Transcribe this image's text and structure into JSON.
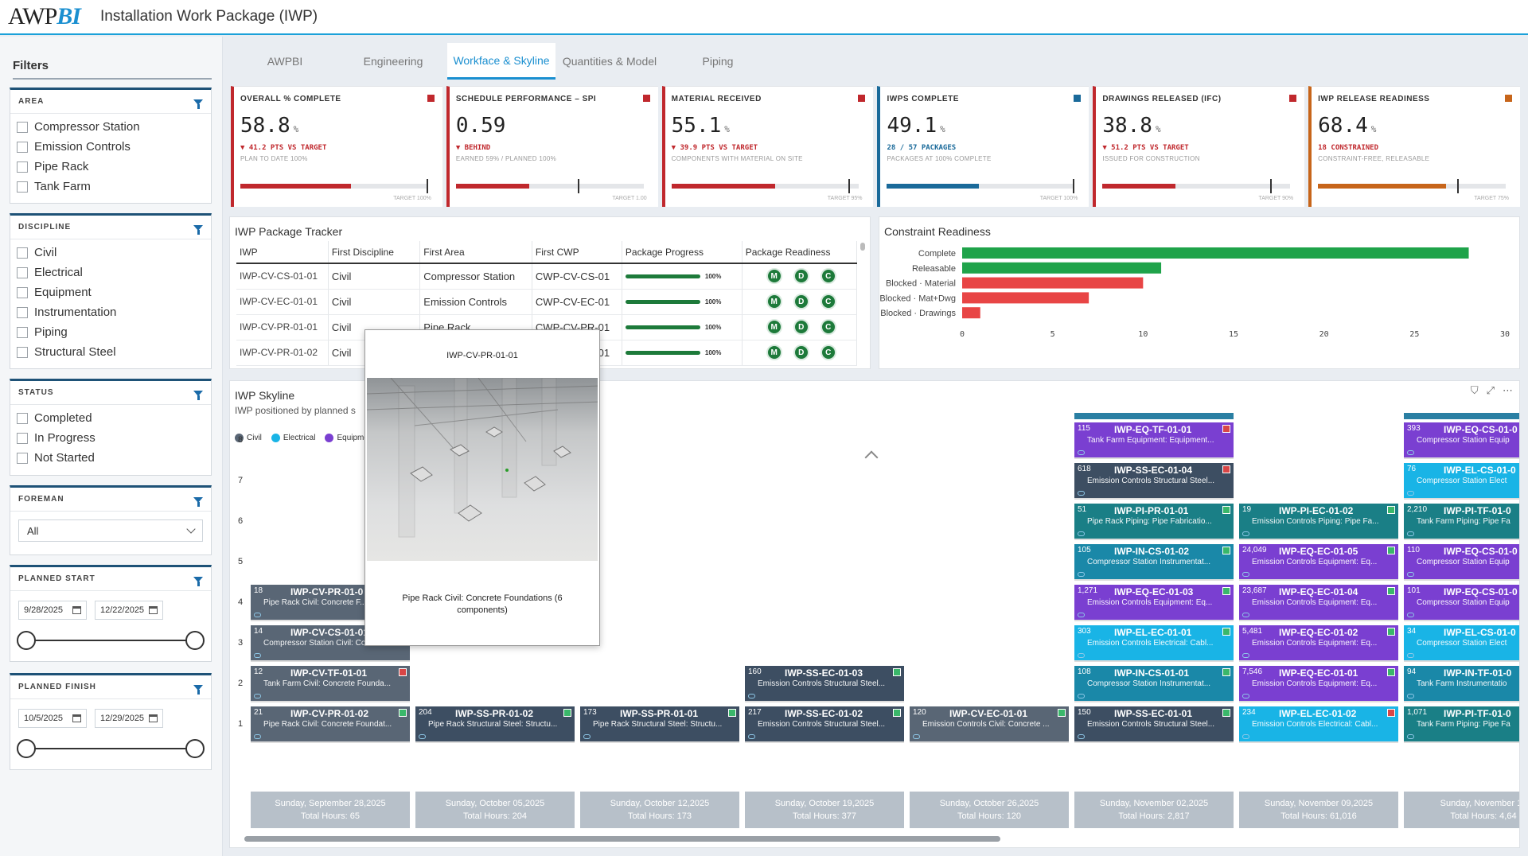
{
  "header": {
    "logo_main": "AWP",
    "logo_accent": "BI",
    "title": "Installation Work Package (IWP)"
  },
  "sidebar": {
    "title": "Filters",
    "area": {
      "label": "AREA",
      "options": [
        "Compressor Station",
        "Emission Controls",
        "Pipe Rack",
        "Tank Farm"
      ]
    },
    "discipline": {
      "label": "DISCIPLINE",
      "options": [
        "Civil",
        "Electrical",
        "Equipment",
        "Instrumentation",
        "Piping",
        "Structural Steel"
      ]
    },
    "status": {
      "label": "STATUS",
      "options": [
        "Completed",
        "In Progress",
        "Not Started"
      ]
    },
    "foreman": {
      "label": "FOREMAN",
      "value": "All"
    },
    "planned_start": {
      "label": "PLANNED START",
      "from": "9/28/2025",
      "to": "12/22/2025"
    },
    "planned_finish": {
      "label": "PLANNED FINISH",
      "from": "10/5/2025",
      "to": "12/29/2025"
    }
  },
  "tabs": [
    "AWPBI",
    "Engineering",
    "Workface & Skyline",
    "Quantities & Model",
    "Piping"
  ],
  "kpis": [
    {
      "label": "OVERALL % COMPLETE",
      "value": "58.8",
      "unit": "%",
      "delta": "▼ 41.2 PTS VS TARGET",
      "sub": "PLAN TO DATE 100%",
      "target": "TARGET 100%",
      "progress": 0.588,
      "target_pos": 1.0
    },
    {
      "label": "SCHEDULE PERFORMANCE – SPI",
      "value": "0.59",
      "unit": "",
      "delta": "▼ BEHIND",
      "sub": "EARNED 59% / PLANNED 100%",
      "target": "TARGET 1.00",
      "progress": 0.39,
      "target_pos": 0.66
    },
    {
      "label": "MATERIAL RECEIVED",
      "value": "55.1",
      "unit": "%",
      "delta": "▼ 39.9 PTS VS TARGET",
      "sub": "COMPONENTS WITH MATERIAL ON SITE",
      "target": "TARGET 95%",
      "progress": 0.551,
      "target_pos": 0.95
    },
    {
      "label": "IWPS COMPLETE",
      "value": "49.1",
      "unit": "%",
      "delta": "28 / 57 PACKAGES",
      "sub": "PACKAGES AT 100% COMPLETE",
      "target": "TARGET 100%",
      "progress": 0.491,
      "target_pos": 1.0
    },
    {
      "label": "DRAWINGS RELEASED (IFC)",
      "value": "38.8",
      "unit": "%",
      "delta": "▼ 51.2 PTS VS TARGET",
      "sub": "ISSUED FOR CONSTRUCTION",
      "target": "TARGET 90%",
      "progress": 0.388,
      "target_pos": 0.9
    },
    {
      "label": "IWP RELEASE READINESS",
      "value": "68.4",
      "unit": "%",
      "delta": "18 CONSTRAINED",
      "sub": "CONSTRAINT-FREE, RELEASABLE",
      "target": "TARGET 75%",
      "progress": 0.684,
      "target_pos": 0.75
    }
  ],
  "tracker": {
    "title": "IWP Package Tracker",
    "columns": [
      "IWP",
      "First Discipline",
      "First Area",
      "First CWP",
      "Package Progress",
      "Package Readiness"
    ],
    "rows": [
      {
        "iwp": "IWP-CV-CS-01-01",
        "discipline": "Civil",
        "area": "Compressor Station",
        "cwp": "CWP-CV-CS-01",
        "progress": "100%"
      },
      {
        "iwp": "IWP-CV-EC-01-01",
        "discipline": "Civil",
        "area": "Emission Controls",
        "cwp": "CWP-CV-EC-01",
        "progress": "100%"
      },
      {
        "iwp": "IWP-CV-PR-01-01",
        "discipline": "Civil",
        "area": "Pipe Rack",
        "cwp": "CWP-CV-PR-01",
        "progress": "100%"
      },
      {
        "iwp": "IWP-CV-PR-01-02",
        "discipline": "Civil",
        "area": "Pipe Rack",
        "cwp": "CWP-CV-PR-01",
        "progress": "100%"
      }
    ],
    "readiness_labels": [
      "M",
      "D",
      "C"
    ]
  },
  "chart_data": {
    "type": "bar",
    "title": "Constraint Readiness",
    "orientation": "horizontal",
    "categories": [
      "Complete",
      "Releasable",
      "Blocked · Material",
      "Blocked · Mat+Dwg",
      "Blocked · Drawings"
    ],
    "values": [
      28,
      11,
      10,
      7,
      1
    ],
    "colors": [
      "#1fa34a",
      "#1fa34a",
      "#e84545",
      "#e84545",
      "#e84545"
    ],
    "xlim": [
      0,
      30
    ],
    "xticks": [
      0,
      5,
      10,
      15,
      20,
      25,
      30
    ]
  },
  "skyline": {
    "title": "IWP Skyline",
    "subtitle": "IWP positioned by planned s",
    "legend": [
      {
        "name": "Civil",
        "color": "#596675"
      },
      {
        "name": "Electrical",
        "color": "#19b4e6"
      },
      {
        "name": "Equipmen",
        "color": "#7a3fd1"
      }
    ],
    "y_labels": [
      "8",
      "7",
      "6",
      "5",
      "4",
      "3",
      "2",
      "1"
    ],
    "weeks": [
      {
        "date": "Sunday, September 28,2025",
        "hours": "Total Hours: 65"
      },
      {
        "date": "Sunday, October 05,2025",
        "hours": "Total Hours: 204"
      },
      {
        "date": "Sunday, October 12,2025",
        "hours": "Total Hours: 173"
      },
      {
        "date": "Sunday, October 19,2025",
        "hours": "Total Hours: 377"
      },
      {
        "date": "Sunday, October 26,2025",
        "hours": "Total Hours: 120"
      },
      {
        "date": "Sunday, November 02,2025",
        "hours": "Total Hours: 2,817"
      },
      {
        "date": "Sunday, November 09,2025",
        "hours": "Total Hours: 61,016"
      },
      {
        "date": "Sunday, November 16",
        "hours": "Total Hours: 4,64"
      }
    ],
    "blocks": [
      {
        "col": 0,
        "row": 1,
        "count": "21",
        "name": "IWP-CV-PR-01-02",
        "desc": "Pipe Rack Civil: Concrete Foundat...",
        "color": "civil",
        "status": "green"
      },
      {
        "col": 0,
        "row": 2,
        "count": "12",
        "name": "IWP-CV-TF-01-01",
        "desc": "Tank Farm Civil: Concrete Founda...",
        "color": "civil",
        "status": "red"
      },
      {
        "col": 0,
        "row": 3,
        "count": "14",
        "name": "IWP-CV-CS-01-01",
        "desc": "Compressor Station Civil: Concret...",
        "color": "civil",
        "status": "green"
      },
      {
        "col": 0,
        "row": 4,
        "count": "18",
        "name": "IWP-CV-PR-01-0",
        "desc": "Pipe Rack Civil: Concrete F...",
        "color": "civil",
        "status": "green"
      },
      {
        "col": 1,
        "row": 1,
        "count": "204",
        "name": "IWP-SS-PR-01-02",
        "desc": "Pipe Rack Structural Steel: Structu...",
        "color": "ss",
        "status": "green"
      },
      {
        "col": 2,
        "row": 1,
        "count": "173",
        "name": "IWP-SS-PR-01-01",
        "desc": "Pipe Rack Structural Steel: Structu...",
        "color": "ss",
        "status": "green"
      },
      {
        "col": 3,
        "row": 1,
        "count": "217",
        "name": "IWP-SS-EC-01-02",
        "desc": "Emission Controls Structural Steel...",
        "color": "ss",
        "status": "green"
      },
      {
        "col": 3,
        "row": 2,
        "count": "160",
        "name": "IWP-SS-EC-01-03",
        "desc": "Emission Controls Structural Steel...",
        "color": "ss",
        "status": "green"
      },
      {
        "col": 4,
        "row": 1,
        "count": "120",
        "name": "IWP-CV-EC-01-01",
        "desc": "Emission Controls Civil: Concrete ...",
        "color": "civil",
        "status": "green"
      },
      {
        "col": 5,
        "row": 1,
        "count": "150",
        "name": "IWP-SS-EC-01-01",
        "desc": "Emission Controls Structural Steel...",
        "color": "ss",
        "status": "green"
      },
      {
        "col": 5,
        "row": 2,
        "count": "108",
        "name": "IWP-IN-CS-01-01",
        "desc": "Compressor Station Instrumentat...",
        "color": "inst",
        "status": "green"
      },
      {
        "col": 5,
        "row": 3,
        "count": "303",
        "name": "IWP-EL-EC-01-01",
        "desc": "Emission Controls Electrical: Cabl...",
        "color": "elec",
        "status": "green"
      },
      {
        "col": 5,
        "row": 4,
        "count": "1,271",
        "name": "IWP-EQ-EC-01-03",
        "desc": "Emission Controls Equipment: Eq...",
        "color": "equip",
        "status": "green"
      },
      {
        "col": 5,
        "row": 5,
        "count": "105",
        "name": "IWP-IN-CS-01-02",
        "desc": "Compressor Station Instrumentat...",
        "color": "inst",
        "status": "green"
      },
      {
        "col": 5,
        "row": 6,
        "count": "51",
        "name": "IWP-PI-PR-01-01",
        "desc": "Pipe Rack Piping: Pipe Fabricatio...",
        "color": "pipe",
        "status": "green"
      },
      {
        "col": 5,
        "row": 7,
        "count": "618",
        "name": "IWP-SS-EC-01-04",
        "desc": "Emission Controls Structural Steel...",
        "color": "ss",
        "status": "red"
      },
      {
        "col": 5,
        "row": 8,
        "count": "115",
        "name": "IWP-EQ-TF-01-01",
        "desc": "Tank Farm Equipment: Equipment...",
        "color": "equip",
        "status": "red"
      },
      {
        "col": 6,
        "row": 1,
        "count": "234",
        "name": "IWP-EL-EC-01-02",
        "desc": "Emission Controls Electrical: Cabl...",
        "color": "elec",
        "status": "red"
      },
      {
        "col": 6,
        "row": 2,
        "count": "7,546",
        "name": "IWP-EQ-EC-01-01",
        "desc": "Emission Controls Equipment: Eq...",
        "color": "equip",
        "status": "green"
      },
      {
        "col": 6,
        "row": 3,
        "count": "5,481",
        "name": "IWP-EQ-EC-01-02",
        "desc": "Emission Controls Equipment: Eq...",
        "color": "equip",
        "status": "green"
      },
      {
        "col": 6,
        "row": 4,
        "count": "23,687",
        "name": "IWP-EQ-EC-01-04",
        "desc": "Emission Controls Equipment: Eq...",
        "color": "equip",
        "status": "green"
      },
      {
        "col": 6,
        "row": 5,
        "count": "24,049",
        "name": "IWP-EQ-EC-01-05",
        "desc": "Emission Controls Equipment: Eq...",
        "color": "equip",
        "status": "green"
      },
      {
        "col": 6,
        "row": 6,
        "count": "19",
        "name": "IWP-PI-EC-01-02",
        "desc": "Emission Controls Piping: Pipe Fa...",
        "color": "pipe",
        "status": "green"
      },
      {
        "col": 7,
        "row": 1,
        "count": "1,071",
        "name": "IWP-PI-TF-01-0",
        "desc": "Tank Farm Piping: Pipe Fa",
        "color": "pipe",
        "status": "none"
      },
      {
        "col": 7,
        "row": 2,
        "count": "94",
        "name": "IWP-IN-TF-01-0",
        "desc": "Tank Farm Instrumentatio",
        "color": "inst",
        "status": "none"
      },
      {
        "col": 7,
        "row": 3,
        "count": "34",
        "name": "IWP-EL-CS-01-0",
        "desc": "Compressor Station Elect",
        "color": "elec",
        "status": "none"
      },
      {
        "col": 7,
        "row": 4,
        "count": "101",
        "name": "IWP-EQ-CS-01-0",
        "desc": "Compressor Station Equip",
        "color": "equip",
        "status": "none"
      },
      {
        "col": 7,
        "row": 5,
        "count": "110",
        "name": "IWP-EQ-CS-01-0",
        "desc": "Compressor Station Equip",
        "color": "equip",
        "status": "none"
      },
      {
        "col": 7,
        "row": 6,
        "count": "2,210",
        "name": "IWP-PI-TF-01-0",
        "desc": "Tank Farm Piping: Pipe Fa",
        "color": "pipe",
        "status": "none"
      },
      {
        "col": 7,
        "row": 7,
        "count": "76",
        "name": "IWP-EL-CS-01-0",
        "desc": "Compressor Station Elect",
        "color": "elec",
        "status": "none"
      },
      {
        "col": 7,
        "row": 8,
        "count": "393",
        "name": "IWP-EQ-CS-01-0",
        "desc": "Compressor Station Equip",
        "color": "equip",
        "status": "none"
      }
    ]
  },
  "tooltip": {
    "title": "IWP-CV-PR-01-01",
    "caption": "Pipe Rack Civil: Concrete Foundations (6 components)"
  }
}
